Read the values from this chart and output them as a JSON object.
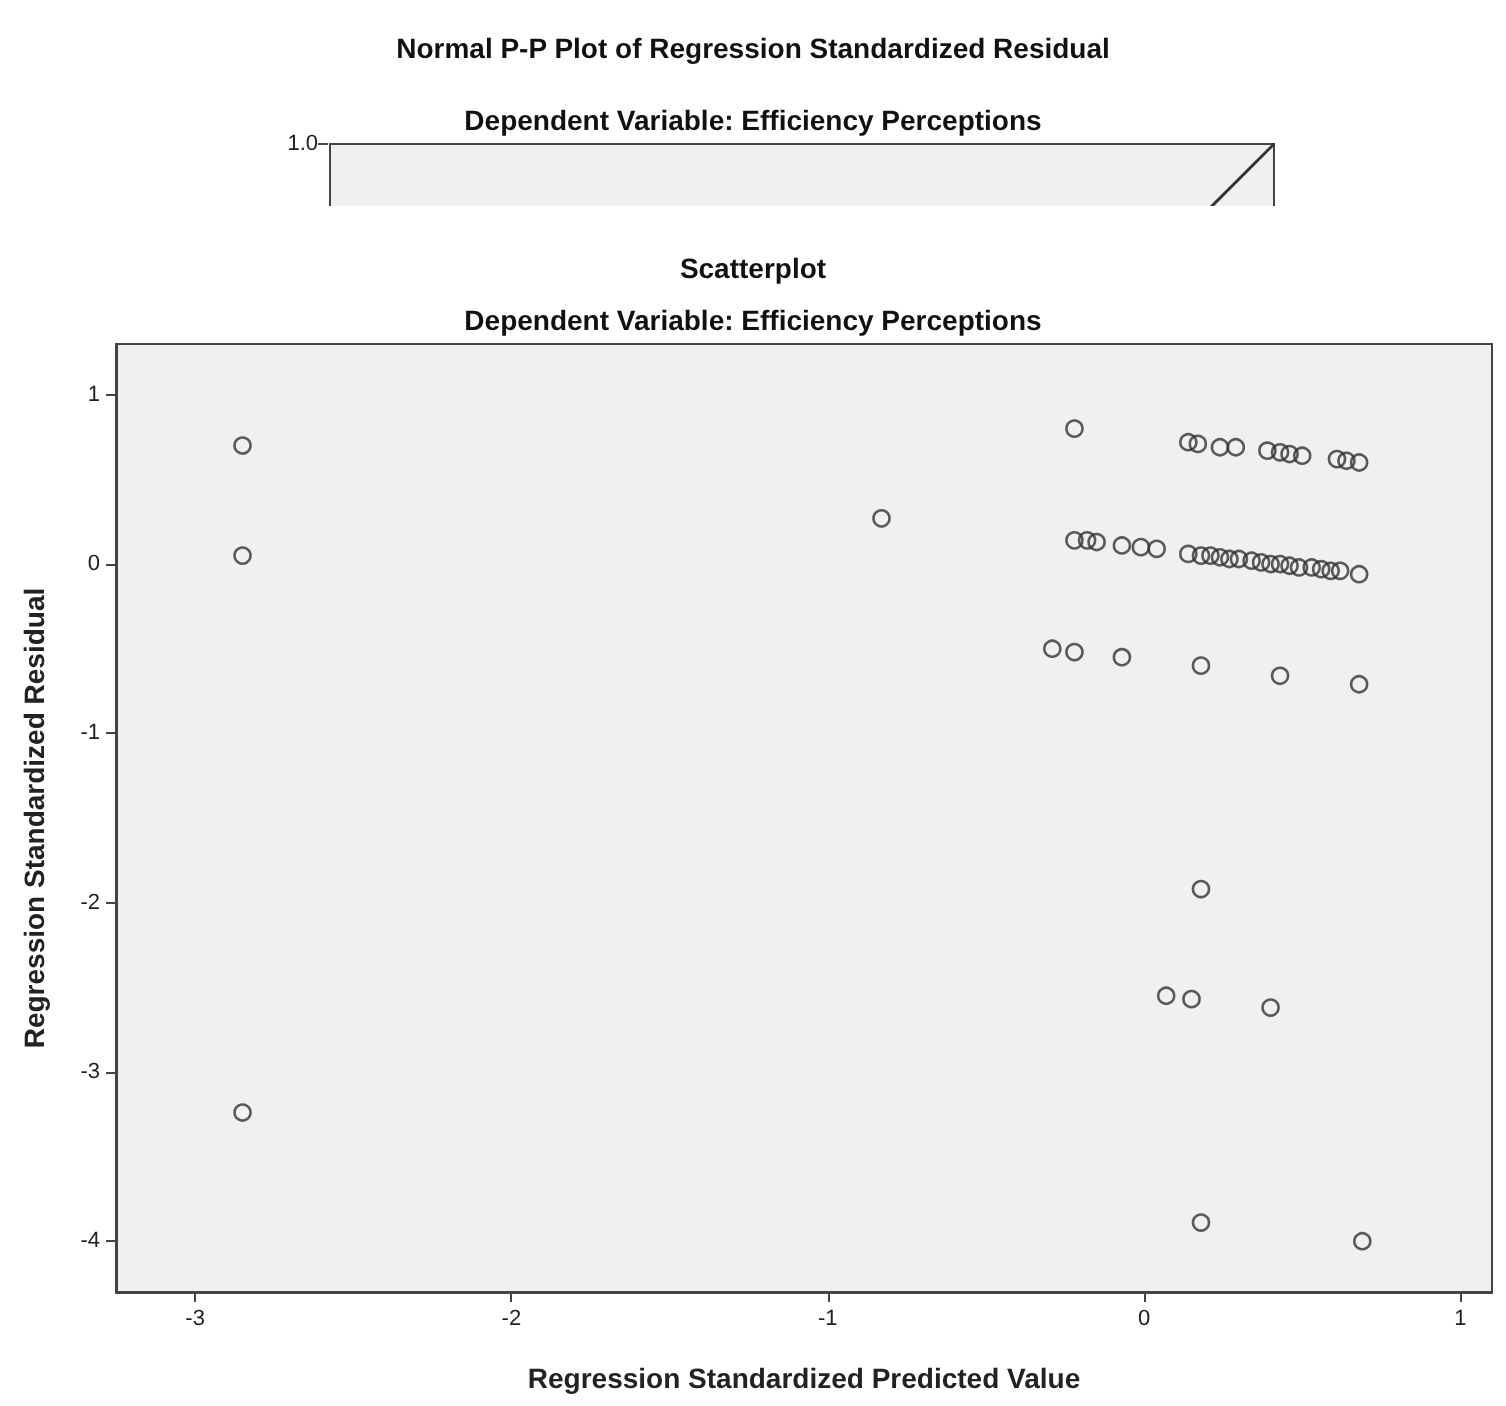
{
  "chart_data": [
    {
      "type": "other",
      "title": "Normal P-P Plot of Regression Standardized Residual",
      "subtitle": "Dependent Variable: Efficiency Perceptions",
      "annotations": [
        "1.0"
      ]
    },
    {
      "type": "scatter",
      "title": "Scatterplot",
      "subtitle": "Dependent Variable: Efficiency Perceptions",
      "xlabel": "Regression Standardized Predicted Value",
      "ylabel": "Regression Standardized Residual",
      "xlim": [
        -3.25,
        1.1
      ],
      "ylim": [
        -4.3,
        1.3
      ],
      "xticks": [
        -3,
        -2,
        -1,
        0,
        1
      ],
      "yticks": [
        -4,
        -3,
        -2,
        -1,
        0,
        1
      ],
      "marker": "circle",
      "color": "#333333",
      "x": [
        -2.85,
        -2.85,
        -2.85,
        -0.83,
        -0.22,
        -0.22,
        -0.18,
        -0.15,
        -0.07,
        -0.01,
        0.04,
        -0.29,
        -0.22,
        -0.07,
        0.14,
        0.17,
        0.24,
        0.29,
        0.39,
        0.43,
        0.46,
        0.5,
        0.61,
        0.64,
        0.68,
        0.14,
        0.18,
        0.21,
        0.24,
        0.27,
        0.3,
        0.34,
        0.37,
        0.4,
        0.43,
        0.46,
        0.49,
        0.53,
        0.56,
        0.59,
        0.62,
        0.68,
        0.18,
        0.43,
        0.68,
        0.18,
        0.07,
        0.15,
        0.4,
        0.18,
        0.69
      ],
      "values": [
        0.7,
        0.05,
        -3.24,
        0.27,
        0.8,
        0.14,
        0.14,
        0.13,
        0.11,
        0.1,
        0.09,
        -0.5,
        -0.52,
        -0.55,
        0.72,
        0.71,
        0.69,
        0.69,
        0.67,
        0.66,
        0.65,
        0.64,
        0.62,
        0.61,
        0.6,
        0.06,
        0.05,
        0.05,
        0.04,
        0.03,
        0.03,
        0.02,
        0.01,
        0.0,
        0.0,
        -0.01,
        -0.02,
        -0.02,
        -0.03,
        -0.04,
        -0.04,
        -0.06,
        -0.6,
        -0.66,
        -0.71,
        -1.92,
        -2.55,
        -2.57,
        -2.62,
        -3.89,
        -4.0
      ]
    }
  ]
}
